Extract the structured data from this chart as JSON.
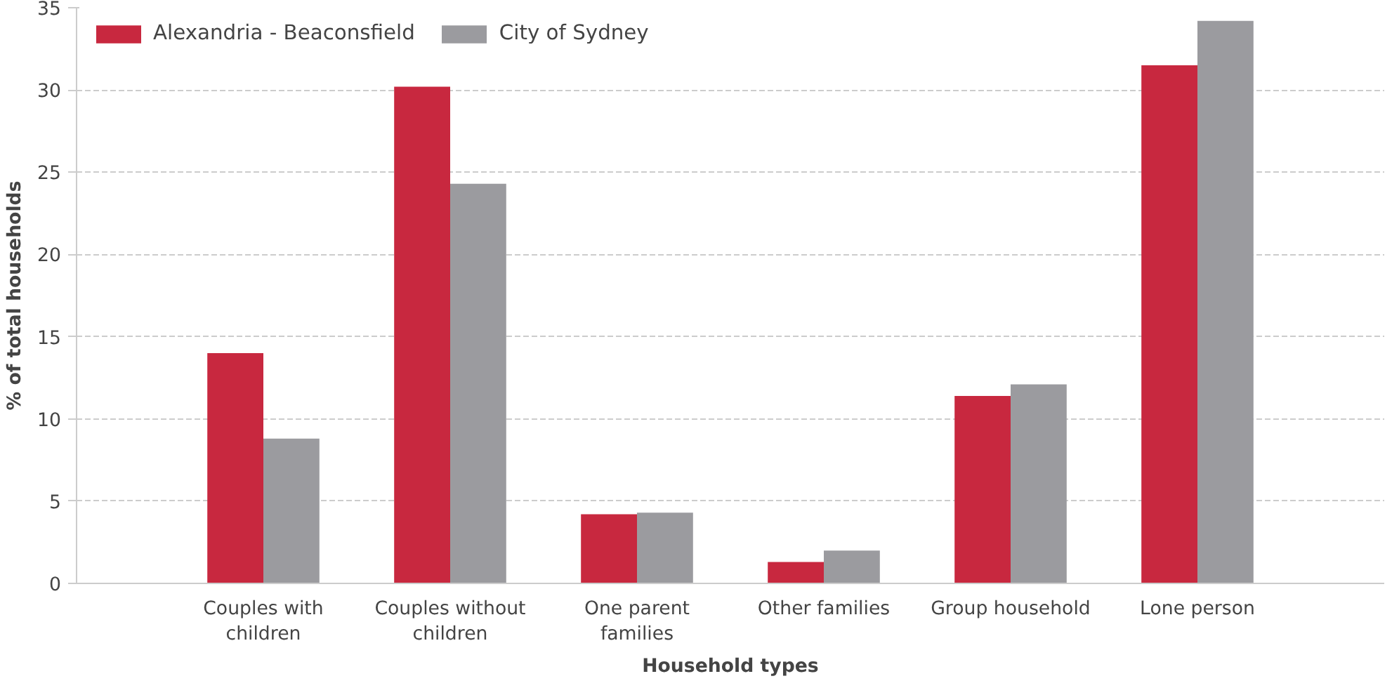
{
  "chart_data": {
    "type": "bar",
    "xlabel": "Household types",
    "ylabel": "% of total households",
    "categories": [
      "Couples with children",
      "Couples without children",
      "One parent families",
      "Other families",
      "Group household",
      "Lone person"
    ],
    "series": [
      {
        "name": "Alexandria - Beaconsfield",
        "color": "#c8283f",
        "values": [
          14.0,
          30.2,
          4.2,
          1.3,
          11.4,
          31.5
        ]
      },
      {
        "name": "City of Sydney",
        "color": "#9b9b9f",
        "values": [
          8.8,
          24.3,
          4.3,
          2.0,
          12.1,
          34.2
        ]
      }
    ],
    "ylim": [
      0,
      35
    ],
    "yticks": [
      0,
      5,
      10,
      15,
      20,
      25,
      30,
      35
    ],
    "grid": "y",
    "legend": "top left"
  }
}
